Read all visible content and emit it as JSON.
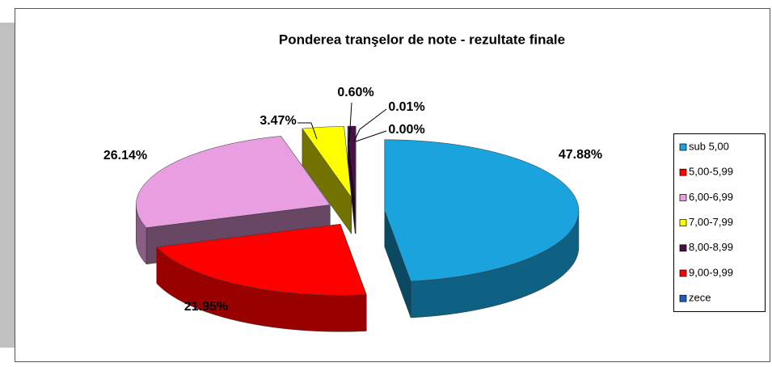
{
  "chart_data": {
    "type": "pie",
    "title": "Ponderea tranşelor de note - rezultate finale",
    "categories": [
      "sub 5,00",
      "5,00-5,99",
      "6,00-6,99",
      "7,00-7,99",
      "8,00-8,99",
      "9,00-9,99",
      "zece"
    ],
    "values": [
      47.88,
      21.95,
      26.14,
      3.47,
      0.6,
      0.01,
      0.0
    ],
    "value_labels": [
      "47.88%",
      "21.95%",
      "26.14%",
      "3.47%",
      "0.60%",
      "0.01%",
      "0.00%"
    ],
    "colors": [
      "#1aa3dc",
      "#ff0000",
      "#e89ee0",
      "#ffff00",
      "#4a0d4a",
      "#ff0000",
      "#1f5fc0"
    ],
    "legend": "right"
  }
}
